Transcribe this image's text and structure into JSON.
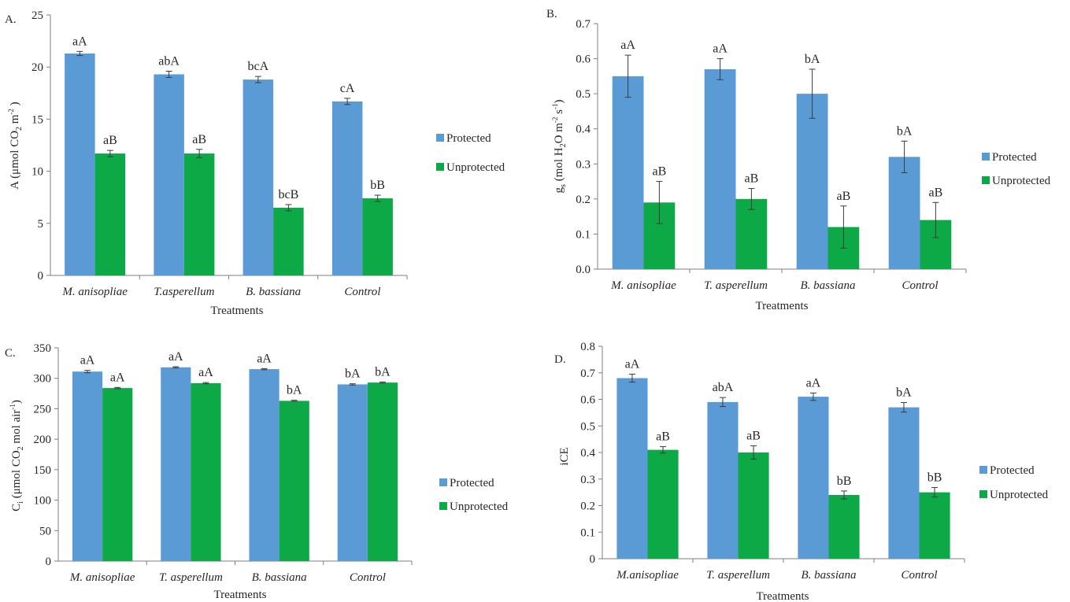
{
  "colors": {
    "protected": "#5B9BD5",
    "unprotected": "#0DA947"
  },
  "x_title": "Treatments",
  "chart_data": [
    {
      "type": "bar",
      "panel": "A.",
      "categories": [
        "M. anisopliae",
        "T.asperellum",
        "B. bassiana",
        "Control"
      ],
      "series": [
        {
          "name": "Protected",
          "values": [
            21.3,
            19.3,
            18.8,
            16.7
          ],
          "errors": [
            0.2,
            0.3,
            0.3,
            0.3
          ],
          "labels": [
            "aA",
            "abA",
            "bcA",
            "cA"
          ]
        },
        {
          "name": "Unprotected",
          "values": [
            11.7,
            11.7,
            6.5,
            7.4
          ],
          "errors": [
            0.3,
            0.4,
            0.3,
            0.3
          ],
          "labels": [
            "aB",
            "aB",
            "bcB",
            "bB"
          ]
        }
      ],
      "ylabel": "A (μmol CO₂ m⁻²)",
      "ylim": [
        0,
        25
      ],
      "yticks": [
        "0",
        "5",
        "10",
        "15",
        "20",
        "25"
      ],
      "legend": "right"
    },
    {
      "type": "bar",
      "panel": "B.",
      "categories": [
        "M. anisopliae",
        "T. asperellum",
        "B. bassiana",
        "Control"
      ],
      "series": [
        {
          "name": "Protected",
          "values": [
            0.55,
            0.57,
            0.5,
            0.32
          ],
          "errors": [
            0.06,
            0.03,
            0.07,
            0.045
          ],
          "labels": [
            "aA",
            "aA",
            "bA",
            "bA"
          ]
        },
        {
          "name": "Unprotected",
          "values": [
            0.19,
            0.2,
            0.12,
            0.14
          ],
          "errors": [
            0.06,
            0.03,
            0.06,
            0.05
          ],
          "labels": [
            "aB",
            "aB",
            "aB",
            "aB"
          ]
        }
      ],
      "ylabel": "gₛ (mol H₂O m⁻² s⁻¹)",
      "ylim": [
        0,
        0.7
      ],
      "yticks": [
        "0.0",
        "0.1",
        "0.2",
        "0.3",
        "0.4",
        "0.5",
        "0.6",
        "0.7"
      ],
      "legend": "right"
    },
    {
      "type": "bar",
      "panel": "C.",
      "categories": [
        "M. anisopliae",
        "T. asperellum",
        "B. bassiana",
        "Control"
      ],
      "series": [
        {
          "name": "Protected",
          "values": [
            311,
            318,
            315,
            290
          ],
          "errors": [
            2,
            1,
            1,
            1
          ],
          "labels": [
            "aA",
            "aA",
            "aA",
            "bA"
          ]
        },
        {
          "name": "Unprotected",
          "values": [
            284,
            292,
            263,
            293
          ],
          "errors": [
            1,
            1,
            1,
            1
          ],
          "labels": [
            "aA",
            "aA",
            "bA",
            "bA"
          ]
        }
      ],
      "ylabel": "Cᵢ (μmol CO₂ mol air⁻¹)",
      "ylim": [
        0,
        350
      ],
      "yticks": [
        "0",
        "50",
        "100",
        "150",
        "200",
        "250",
        "300",
        "350"
      ],
      "legend": "right"
    },
    {
      "type": "bar",
      "panel": "D.",
      "categories": [
        "M.anisopliae",
        "T. asperellum",
        "B. bassiana",
        "Control"
      ],
      "series": [
        {
          "name": "Protected",
          "values": [
            0.68,
            0.59,
            0.61,
            0.57
          ],
          "errors": [
            0.015,
            0.017,
            0.014,
            0.018
          ],
          "labels": [
            "aA",
            "abA",
            "aA",
            "bA"
          ]
        },
        {
          "name": "Unprotected",
          "values": [
            0.41,
            0.4,
            0.24,
            0.25
          ],
          "errors": [
            0.012,
            0.025,
            0.015,
            0.018
          ],
          "labels": [
            "aB",
            "aB",
            "bB",
            "bB"
          ]
        }
      ],
      "ylabel": "iCE",
      "ylim": [
        0,
        0.8
      ],
      "yticks": [
        "0",
        "0.1",
        "0.2",
        "0.3",
        "0.4",
        "0.5",
        "0.6",
        "0.7",
        "0.8"
      ],
      "legend": "right"
    }
  ]
}
